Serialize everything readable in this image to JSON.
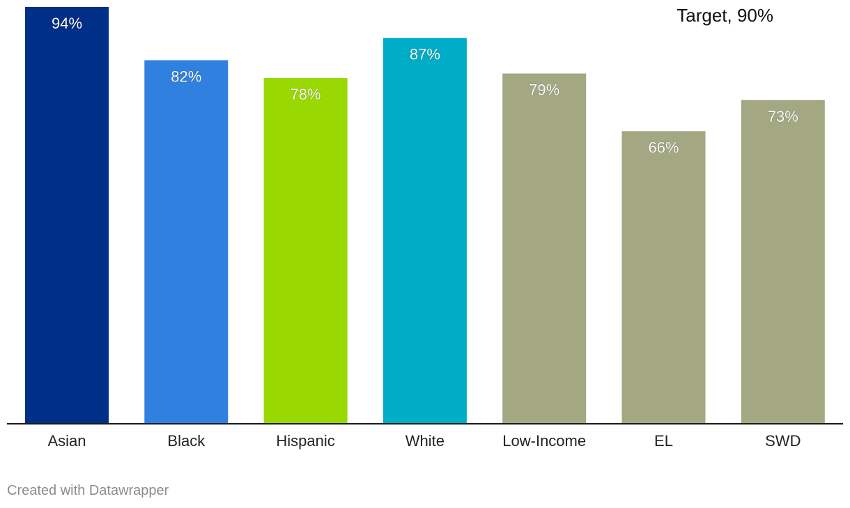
{
  "chart_data": {
    "type": "bar",
    "categories": [
      "Asian",
      "Black",
      "Hispanic",
      "White",
      "Low-Income",
      "EL",
      "SWD"
    ],
    "values": [
      94,
      82,
      78,
      87,
      79,
      66,
      73
    ],
    "value_labels": [
      "94%",
      "82%",
      "78%",
      "87%",
      "79%",
      "66%",
      "73%"
    ],
    "colors": [
      "#002f87",
      "#3080e0",
      "#99d800",
      "#00adc6",
      "#a3a883",
      "#a3a883",
      "#a3a883"
    ],
    "annotation": "Target, 90%",
    "ylim": [
      0,
      94
    ],
    "grid": false,
    "legend": "none"
  },
  "footer": {
    "credit": "Created with Datawrapper"
  }
}
